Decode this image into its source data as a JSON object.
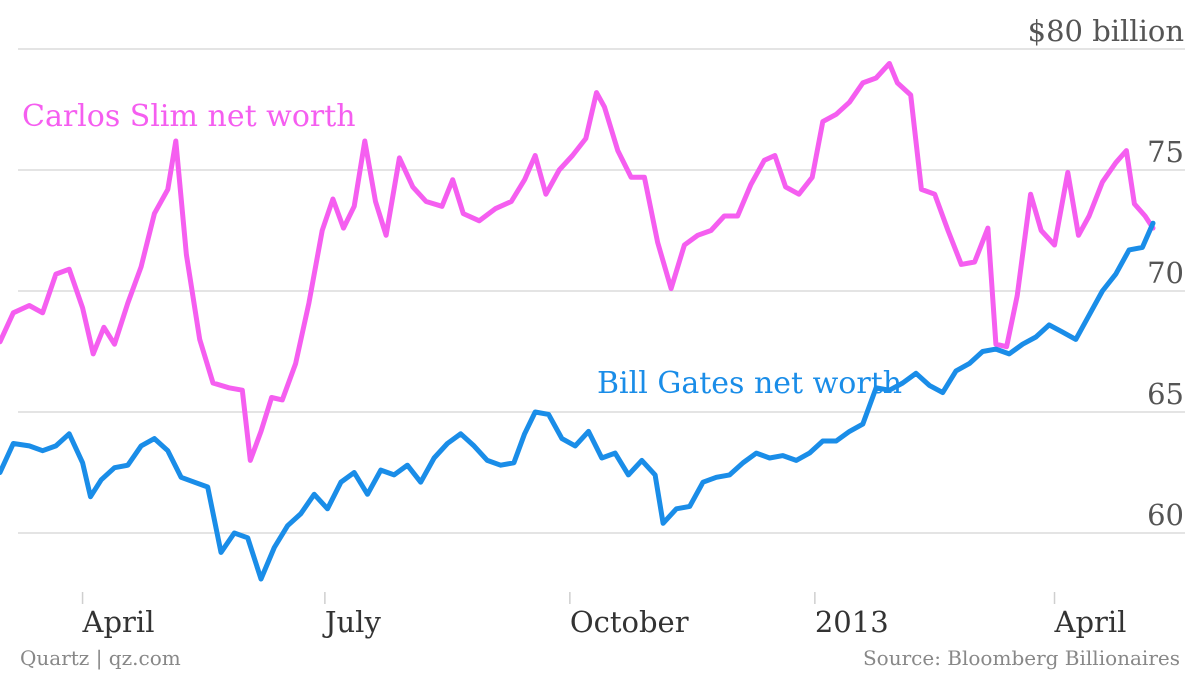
{
  "chart_data": {
    "type": "line",
    "y_unit_label": "$80 billion",
    "ylim": [
      56,
      80
    ],
    "yticks": [
      {
        "value": 80,
        "label": "$80 billion"
      },
      {
        "value": 75,
        "label": "75"
      },
      {
        "value": 70,
        "label": "70"
      },
      {
        "value": 65,
        "label": "65"
      },
      {
        "value": 60,
        "label": "60"
      }
    ],
    "xlim": [
      "2012-03-01",
      "2013-05-20"
    ],
    "xticks": [
      {
        "date": "2012-04-01",
        "label": "April"
      },
      {
        "date": "2012-07-01",
        "label": "July"
      },
      {
        "date": "2012-10-01",
        "label": "October"
      },
      {
        "date": "2013-01-01",
        "label": "2013"
      },
      {
        "date": "2013-04-01",
        "label": "April"
      }
    ],
    "grid": true,
    "series": [
      {
        "name": "Carlos Slim net worth",
        "color": "#f55ef0",
        "points": [
          [
            "2012-03-01",
            67.9
          ],
          [
            "2012-03-06",
            69.1
          ],
          [
            "2012-03-12",
            69.4
          ],
          [
            "2012-03-17",
            69.1
          ],
          [
            "2012-03-22",
            70.7
          ],
          [
            "2012-03-27",
            70.9
          ],
          [
            "2012-04-01",
            69.3
          ],
          [
            "2012-04-05",
            67.4
          ],
          [
            "2012-04-09",
            68.5
          ],
          [
            "2012-04-13",
            67.8
          ],
          [
            "2012-04-18",
            69.5
          ],
          [
            "2012-04-23",
            71.0
          ],
          [
            "2012-04-28",
            73.2
          ],
          [
            "2012-05-03",
            74.2
          ],
          [
            "2012-05-06",
            76.2
          ],
          [
            "2012-05-10",
            71.5
          ],
          [
            "2012-05-15",
            68.0
          ],
          [
            "2012-05-20",
            66.2
          ],
          [
            "2012-05-26",
            66.0
          ],
          [
            "2012-05-31",
            65.9
          ],
          [
            "2012-06-03",
            63.0
          ],
          [
            "2012-06-07",
            64.2
          ],
          [
            "2012-06-11",
            65.6
          ],
          [
            "2012-06-15",
            65.5
          ],
          [
            "2012-06-20",
            67.0
          ],
          [
            "2012-06-25",
            69.5
          ],
          [
            "2012-06-30",
            72.5
          ],
          [
            "2012-07-04",
            73.8
          ],
          [
            "2012-07-08",
            72.6
          ],
          [
            "2012-07-12",
            73.5
          ],
          [
            "2012-07-16",
            76.2
          ],
          [
            "2012-07-20",
            73.7
          ],
          [
            "2012-07-24",
            72.3
          ],
          [
            "2012-07-29",
            75.5
          ],
          [
            "2012-08-03",
            74.3
          ],
          [
            "2012-08-08",
            73.7
          ],
          [
            "2012-08-14",
            73.5
          ],
          [
            "2012-08-18",
            74.6
          ],
          [
            "2012-08-22",
            73.2
          ],
          [
            "2012-08-28",
            72.9
          ],
          [
            "2012-09-03",
            73.4
          ],
          [
            "2012-09-09",
            73.7
          ],
          [
            "2012-09-14",
            74.6
          ],
          [
            "2012-09-18",
            75.6
          ],
          [
            "2012-09-22",
            74.0
          ],
          [
            "2012-09-27",
            75.0
          ],
          [
            "2012-10-02",
            75.6
          ],
          [
            "2012-10-07",
            76.3
          ],
          [
            "2012-10-11",
            78.2
          ],
          [
            "2012-10-14",
            77.6
          ],
          [
            "2012-10-19",
            75.8
          ],
          [
            "2012-10-24",
            74.7
          ],
          [
            "2012-10-29",
            74.7
          ],
          [
            "2012-11-03",
            72.0
          ],
          [
            "2012-11-08",
            70.1
          ],
          [
            "2012-11-13",
            71.9
          ],
          [
            "2012-11-18",
            72.3
          ],
          [
            "2012-11-23",
            72.5
          ],
          [
            "2012-11-28",
            73.1
          ],
          [
            "2012-12-03",
            73.1
          ],
          [
            "2012-12-08",
            74.4
          ],
          [
            "2012-12-13",
            75.4
          ],
          [
            "2012-12-17",
            75.6
          ],
          [
            "2012-12-21",
            74.3
          ],
          [
            "2012-12-26",
            74.0
          ],
          [
            "2012-12-31",
            74.7
          ],
          [
            "2013-01-04",
            77.0
          ],
          [
            "2013-01-09",
            77.3
          ],
          [
            "2013-01-14",
            77.8
          ],
          [
            "2013-01-19",
            78.6
          ],
          [
            "2013-01-24",
            78.8
          ],
          [
            "2013-01-29",
            79.4
          ],
          [
            "2013-02-01",
            78.6
          ],
          [
            "2013-02-06",
            78.1
          ],
          [
            "2013-02-10",
            74.2
          ],
          [
            "2013-02-15",
            74.0
          ],
          [
            "2013-02-20",
            72.5
          ],
          [
            "2013-02-25",
            71.1
          ],
          [
            "2013-03-02",
            71.2
          ],
          [
            "2013-03-07",
            72.6
          ],
          [
            "2013-03-10",
            67.8
          ],
          [
            "2013-03-14",
            67.7
          ],
          [
            "2013-03-18",
            69.8
          ],
          [
            "2013-03-23",
            74.0
          ],
          [
            "2013-03-27",
            72.5
          ],
          [
            "2013-04-01",
            71.9
          ],
          [
            "2013-04-06",
            74.9
          ],
          [
            "2013-04-10",
            72.3
          ],
          [
            "2013-04-14",
            73.1
          ],
          [
            "2013-04-19",
            74.5
          ],
          [
            "2013-04-24",
            75.3
          ],
          [
            "2013-04-28",
            75.8
          ],
          [
            "2013-05-01",
            73.6
          ],
          [
            "2013-05-05",
            73.1
          ],
          [
            "2013-05-08",
            72.6
          ]
        ]
      },
      {
        "name": "Bill Gates net worth",
        "color": "#1a8de8",
        "points": [
          [
            "2012-03-01",
            62.5
          ],
          [
            "2012-03-06",
            63.7
          ],
          [
            "2012-03-12",
            63.6
          ],
          [
            "2012-03-17",
            63.4
          ],
          [
            "2012-03-22",
            63.6
          ],
          [
            "2012-03-27",
            64.1
          ],
          [
            "2012-04-01",
            62.9
          ],
          [
            "2012-04-04",
            61.5
          ],
          [
            "2012-04-08",
            62.2
          ],
          [
            "2012-04-13",
            62.7
          ],
          [
            "2012-04-18",
            62.8
          ],
          [
            "2012-04-23",
            63.6
          ],
          [
            "2012-04-28",
            63.9
          ],
          [
            "2012-05-03",
            63.4
          ],
          [
            "2012-05-08",
            62.3
          ],
          [
            "2012-05-13",
            62.1
          ],
          [
            "2012-05-18",
            61.9
          ],
          [
            "2012-05-23",
            59.2
          ],
          [
            "2012-05-28",
            60.0
          ],
          [
            "2012-06-02",
            59.8
          ],
          [
            "2012-06-07",
            58.1
          ],
          [
            "2012-06-12",
            59.4
          ],
          [
            "2012-06-17",
            60.3
          ],
          [
            "2012-06-22",
            60.8
          ],
          [
            "2012-06-27",
            61.6
          ],
          [
            "2012-07-02",
            61.0
          ],
          [
            "2012-07-07",
            62.1
          ],
          [
            "2012-07-12",
            62.5
          ],
          [
            "2012-07-17",
            61.6
          ],
          [
            "2012-07-22",
            62.6
          ],
          [
            "2012-07-27",
            62.4
          ],
          [
            "2012-08-01",
            62.8
          ],
          [
            "2012-08-06",
            62.1
          ],
          [
            "2012-08-11",
            63.1
          ],
          [
            "2012-08-16",
            63.7
          ],
          [
            "2012-08-21",
            64.1
          ],
          [
            "2012-08-26",
            63.6
          ],
          [
            "2012-08-31",
            63.0
          ],
          [
            "2012-09-05",
            62.8
          ],
          [
            "2012-09-10",
            62.9
          ],
          [
            "2012-09-14",
            64.1
          ],
          [
            "2012-09-18",
            65.0
          ],
          [
            "2012-09-23",
            64.9
          ],
          [
            "2012-09-28",
            63.9
          ],
          [
            "2012-10-03",
            63.6
          ],
          [
            "2012-10-08",
            64.2
          ],
          [
            "2012-10-13",
            63.1
          ],
          [
            "2012-10-18",
            63.3
          ],
          [
            "2012-10-23",
            62.4
          ],
          [
            "2012-10-28",
            63.0
          ],
          [
            "2012-11-02",
            62.4
          ],
          [
            "2012-11-05",
            60.4
          ],
          [
            "2012-11-10",
            61.0
          ],
          [
            "2012-11-15",
            61.1
          ],
          [
            "2012-11-20",
            62.1
          ],
          [
            "2012-11-25",
            62.3
          ],
          [
            "2012-11-30",
            62.4
          ],
          [
            "2012-12-05",
            62.9
          ],
          [
            "2012-12-10",
            63.3
          ],
          [
            "2012-12-15",
            63.1
          ],
          [
            "2012-12-20",
            63.2
          ],
          [
            "2012-12-25",
            63.0
          ],
          [
            "2012-12-30",
            63.3
          ],
          [
            "2013-01-04",
            63.8
          ],
          [
            "2013-01-09",
            63.8
          ],
          [
            "2013-01-14",
            64.2
          ],
          [
            "2013-01-19",
            64.5
          ],
          [
            "2013-01-24",
            66.0
          ],
          [
            "2013-01-29",
            65.9
          ],
          [
            "2013-02-03",
            66.2
          ],
          [
            "2013-02-08",
            66.6
          ],
          [
            "2013-02-13",
            66.1
          ],
          [
            "2013-02-18",
            65.8
          ],
          [
            "2013-02-23",
            66.7
          ],
          [
            "2013-02-28",
            67.0
          ],
          [
            "2013-03-05",
            67.5
          ],
          [
            "2013-03-10",
            67.6
          ],
          [
            "2013-03-15",
            67.4
          ],
          [
            "2013-03-20",
            67.8
          ],
          [
            "2013-03-25",
            68.1
          ],
          [
            "2013-03-30",
            68.6
          ],
          [
            "2013-04-04",
            68.3
          ],
          [
            "2013-04-09",
            68.0
          ],
          [
            "2013-04-14",
            69.0
          ],
          [
            "2013-04-19",
            70.0
          ],
          [
            "2013-04-24",
            70.7
          ],
          [
            "2013-04-29",
            71.7
          ],
          [
            "2013-05-04",
            71.8
          ],
          [
            "2013-05-08",
            72.8
          ]
        ]
      }
    ],
    "annotations": [
      {
        "text": "Carlos Slim net worth",
        "series": 0
      },
      {
        "text": "Bill Gates net worth",
        "series": 1
      }
    ]
  },
  "footer": {
    "left": "Quartz | qz.com",
    "right": "Source: Bloomberg Billionaires"
  }
}
